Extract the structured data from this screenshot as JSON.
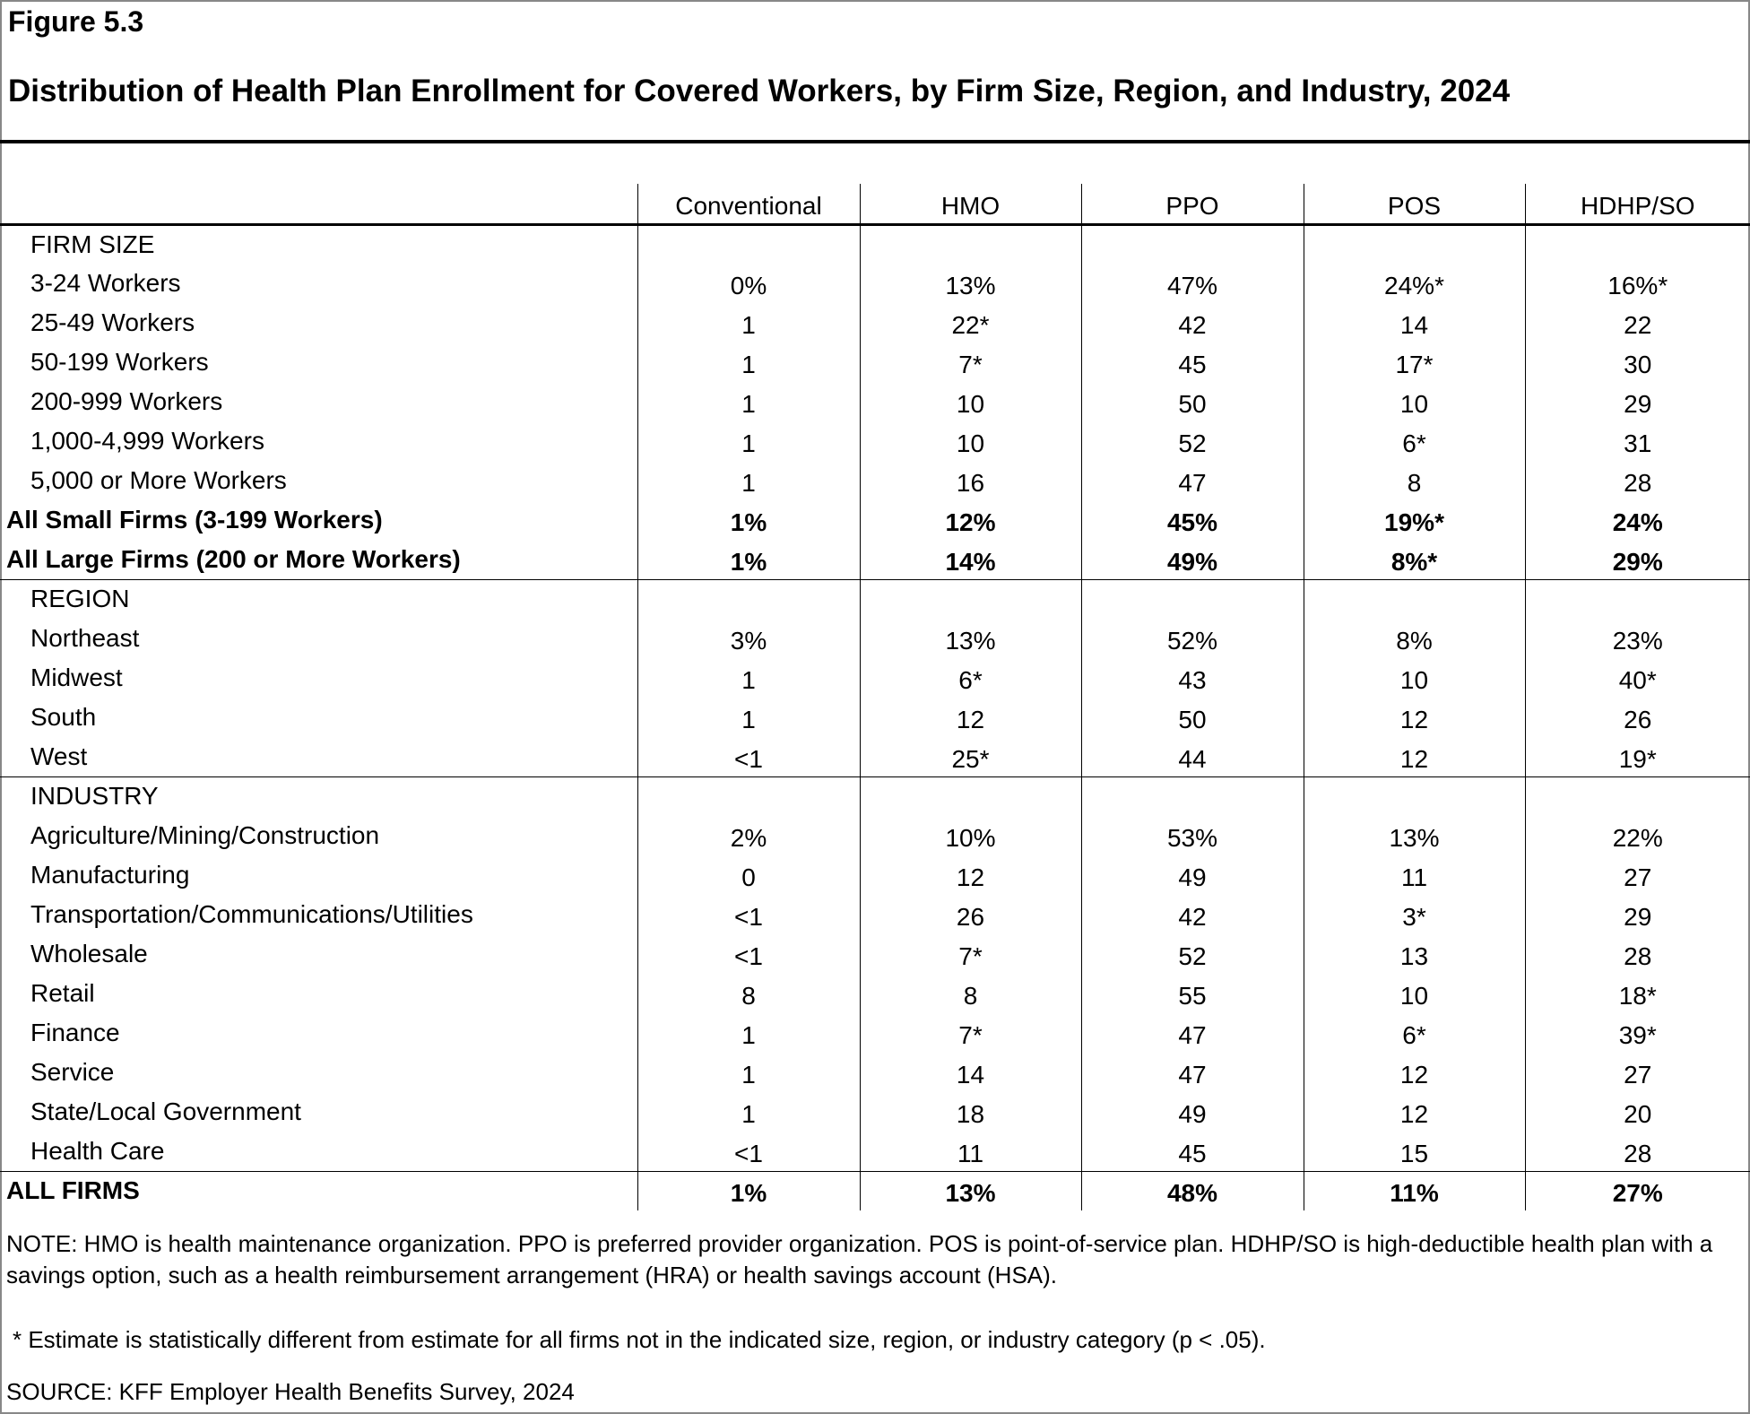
{
  "figure": "Figure 5.3",
  "title": "Distribution of Health Plan Enrollment for Covered Workers, by Firm Size, Region, and Industry, 2024",
  "columns": [
    "Conventional",
    "HMO",
    "PPO",
    "POS",
    "HDHP/SO"
  ],
  "rows": [
    {
      "label": "FIRM SIZE",
      "type": "section",
      "values": []
    },
    {
      "label": "3-24 Workers",
      "values": [
        "0%",
        "13%",
        "47%",
        "24%*",
        "16%*"
      ]
    },
    {
      "label": "25-49 Workers",
      "values": [
        "1",
        "22*",
        "42",
        "14",
        "22"
      ]
    },
    {
      "label": "50-199 Workers",
      "values": [
        "1",
        "7*",
        "45",
        "17*",
        "30"
      ]
    },
    {
      "label": "200-999 Workers",
      "values": [
        "1",
        "10",
        "50",
        "10",
        "29"
      ]
    },
    {
      "label": "1,000-4,999 Workers",
      "values": [
        "1",
        "10",
        "52",
        "6*",
        "31"
      ]
    },
    {
      "label": "5,000 or More Workers",
      "values": [
        "1",
        "16",
        "47",
        "8",
        "28"
      ]
    },
    {
      "label": "All Small Firms (3-199 Workers)",
      "type": "bold",
      "values": [
        "1%",
        "12%",
        "45%",
        "19%*",
        "24%"
      ]
    },
    {
      "label": "All Large Firms (200 or More Workers)",
      "type": "bold",
      "values": [
        "1%",
        "14%",
        "49%",
        "8%*",
        "29%"
      ]
    },
    {
      "label": "REGION",
      "type": "section",
      "top": true,
      "values": []
    },
    {
      "label": "Northeast",
      "values": [
        "3%",
        "13%",
        "52%",
        "8%",
        "23%"
      ]
    },
    {
      "label": "Midwest",
      "values": [
        "1",
        "6*",
        "43",
        "10",
        "40*"
      ]
    },
    {
      "label": "South",
      "values": [
        "1",
        "12",
        "50",
        "12",
        "26"
      ]
    },
    {
      "label": "West",
      "values": [
        "<1",
        "25*",
        "44",
        "12",
        "19*"
      ]
    },
    {
      "label": "INDUSTRY",
      "type": "section",
      "top": true,
      "values": []
    },
    {
      "label": "Agriculture/Mining/Construction",
      "values": [
        "2%",
        "10%",
        "53%",
        "13%",
        "22%"
      ]
    },
    {
      "label": "Manufacturing",
      "values": [
        "0",
        "12",
        "49",
        "11",
        "27"
      ]
    },
    {
      "label": "Transportation/Communications/Utilities",
      "values": [
        "<1",
        "26",
        "42",
        "3*",
        "29"
      ]
    },
    {
      "label": "Wholesale",
      "values": [
        "<1",
        "7*",
        "52",
        "13",
        "28"
      ]
    },
    {
      "label": "Retail",
      "values": [
        "8",
        "8",
        "55",
        "10",
        "18*"
      ]
    },
    {
      "label": "Finance",
      "values": [
        "1",
        "7*",
        "47",
        "6*",
        "39*"
      ]
    },
    {
      "label": "Service",
      "values": [
        "1",
        "14",
        "47",
        "12",
        "27"
      ]
    },
    {
      "label": "State/Local Government",
      "values": [
        "1",
        "18",
        "49",
        "12",
        "20"
      ]
    },
    {
      "label": "Health Care",
      "values": [
        "<1",
        "11",
        "45",
        "15",
        "28"
      ]
    },
    {
      "label": "ALL FIRMS",
      "type": "bold",
      "top": true,
      "values": [
        "1%",
        "13%",
        "48%",
        "11%",
        "27%"
      ]
    }
  ],
  "note": "NOTE: HMO is health maintenance organization. PPO is preferred provider organization. POS is point-of-service plan. HDHP/SO is high-deductible health plan with a savings option, such as a health reimbursement arrangement (HRA) or health savings account (HSA).",
  "asterisk_note": "* Estimate is statistically different from estimate for all firms not in the indicated size, region, or industry category (p < .05).",
  "source": "SOURCE: KFF Employer Health Benefits Survey, 2024"
}
